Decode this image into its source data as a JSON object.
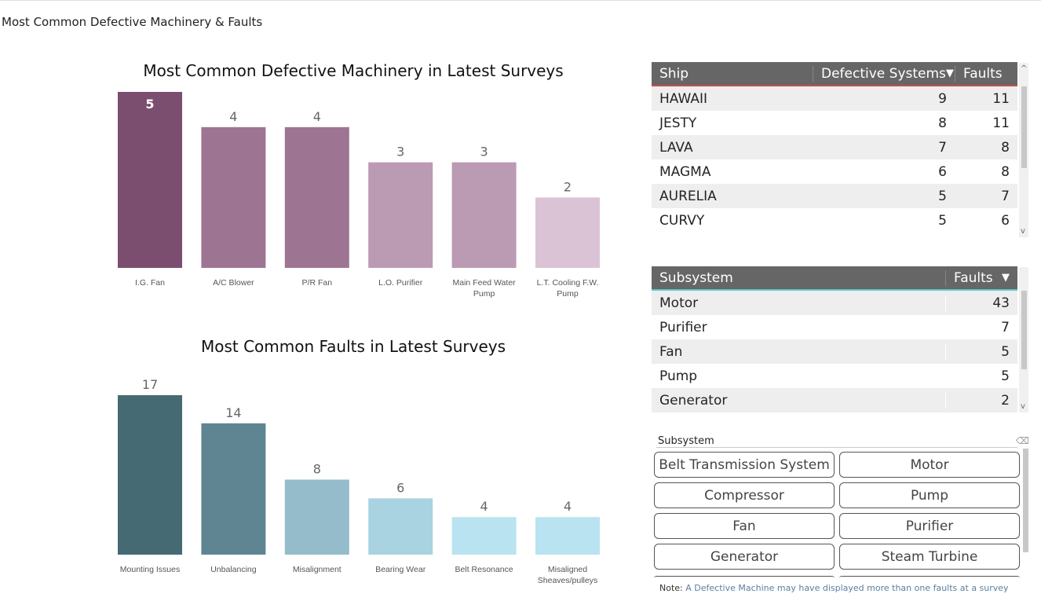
{
  "page_title": "Most Common Defective Machinery & Faults",
  "chart_data": [
    {
      "type": "bar",
      "title": "Most Common Defective Machinery in Latest Surveys",
      "categories": [
        "I.G. Fan",
        "A/C Blower",
        "P/R Fan",
        "L.O. Purifier",
        "Main Feed Water Pump",
        "L.T. Cooling F.W. Pump"
      ],
      "values": [
        5,
        4,
        4,
        3,
        3,
        2
      ],
      "colors": [
        "#7b4d6e",
        "#9d7592",
        "#9d7592",
        "#bb9ab3",
        "#bb9ab3",
        "#dbc3d6"
      ],
      "xlabel": "",
      "ylabel": ""
    },
    {
      "type": "bar",
      "title": "Most Common Faults in Latest Surveys",
      "categories": [
        "Mounting Issues",
        "Unbalancing",
        "Misalignment",
        "Bearing Wear",
        "Belt Resonance",
        "Misaligned Sheaves/pulleys"
      ],
      "values": [
        17,
        14,
        8,
        6,
        4,
        4
      ],
      "colors": [
        "#456a74",
        "#5f8592",
        "#94bccb",
        "#a9d3e0",
        "#b9e3f0",
        "#b9e3f0"
      ],
      "xlabel": "",
      "ylabel": ""
    }
  ],
  "ship_table": {
    "headers": [
      "Ship",
      "Defective Systems",
      "Faults"
    ],
    "sort_icon": "sort-desc-icon",
    "rows": [
      [
        "HAWAII",
        "9",
        "11"
      ],
      [
        "JESTY",
        "8",
        "11"
      ],
      [
        "LAVA",
        "7",
        "8"
      ],
      [
        "MAGMA",
        "6",
        "8"
      ],
      [
        "AURELIA",
        "5",
        "7"
      ],
      [
        "CURVY",
        "5",
        "6"
      ]
    ]
  },
  "subsystem_table": {
    "headers": [
      "Subsystem",
      "Faults"
    ],
    "rows": [
      [
        "Motor",
        "43"
      ],
      [
        "Purifier",
        "7"
      ],
      [
        "Fan",
        "5"
      ],
      [
        "Pump",
        "5"
      ],
      [
        "Generator",
        "2"
      ]
    ]
  },
  "slicer": {
    "title": "Subsystem",
    "clear_icon": "eraser-icon",
    "options": [
      "Belt Transmission System",
      "Motor",
      "Compressor",
      "Pump",
      "Fan",
      "Purifier",
      "Generator",
      "Steam Turbine"
    ]
  },
  "note": {
    "label": "Note:",
    "text": "A Defective Machine may have displayed more than one faults at a survey"
  }
}
